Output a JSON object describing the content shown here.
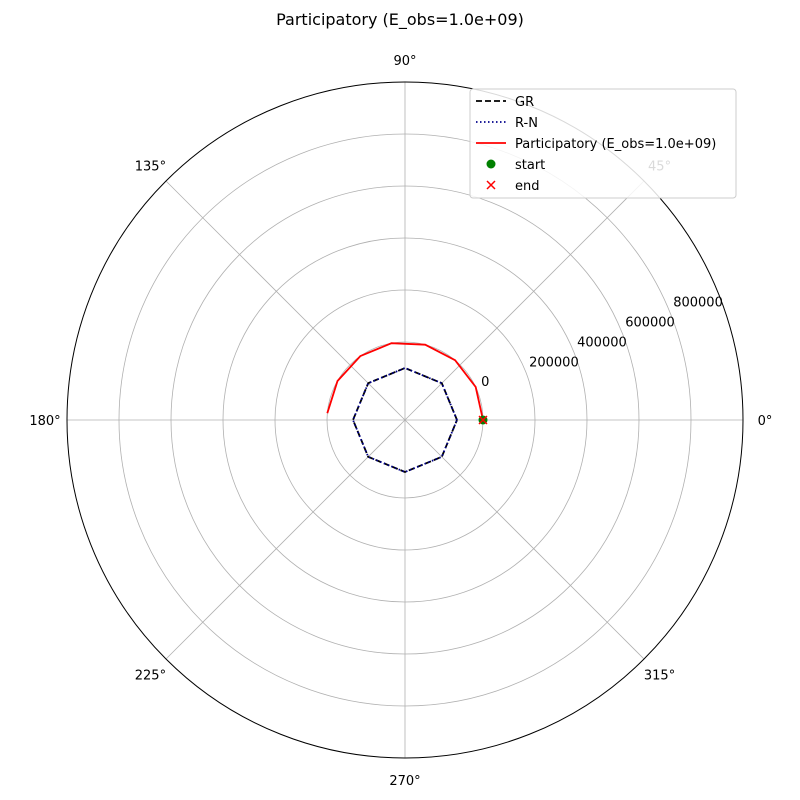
{
  "chart_data": {
    "type": "line",
    "projection": "polar",
    "title": "Participatory (E_obs=1.0e+09)",
    "angle_ticks": [
      "0°",
      "45°",
      "90°",
      "135°",
      "180°",
      "225°",
      "270°",
      "315°"
    ],
    "angle_tick_degrees": [
      0,
      45,
      90,
      135,
      180,
      225,
      270,
      315
    ],
    "radial_ticks": [
      0,
      200000,
      400000,
      600000,
      800000
    ],
    "radial_tick_labels": [
      "0",
      "200000",
      "400000",
      "600000",
      "800000"
    ],
    "radial_min": -300000,
    "radial_max": 1000000,
    "grid": true,
    "legend_position": "upper right",
    "series": [
      {
        "name": "GR",
        "style": "dashed",
        "color": "#000000",
        "theta_deg": [
          0,
          45,
          90,
          135,
          180,
          225,
          270,
          315,
          360
        ],
        "r": [
          -100000,
          -100000,
          -100000,
          -100000,
          -100000,
          -100000,
          -100000,
          -100000,
          -100000
        ]
      },
      {
        "name": "R-N",
        "style": "dotted",
        "color": "#00008b",
        "theta_deg": [
          0,
          45,
          90,
          135,
          180,
          225,
          270,
          315,
          360
        ],
        "r": [
          -100000,
          -100000,
          -100000,
          -100000,
          -100000,
          -100000,
          -100000,
          -100000,
          -100000
        ]
      },
      {
        "name": "Participatory (E_obs=1.0e+09)",
        "style": "solid",
        "color": "#ff0000",
        "theta_deg": [
          0,
          25,
          50,
          75,
          100,
          125,
          150,
          175
        ],
        "r": [
          0,
          0,
          0,
          0,
          0,
          0,
          0,
          0
        ]
      },
      {
        "name": "start",
        "style": "marker-circle",
        "color": "#008000",
        "theta_deg": [
          0
        ],
        "r": [
          0
        ]
      },
      {
        "name": "end",
        "style": "marker-x",
        "color": "#ff0000",
        "theta_deg": [
          0
        ],
        "r": [
          0
        ]
      }
    ]
  }
}
